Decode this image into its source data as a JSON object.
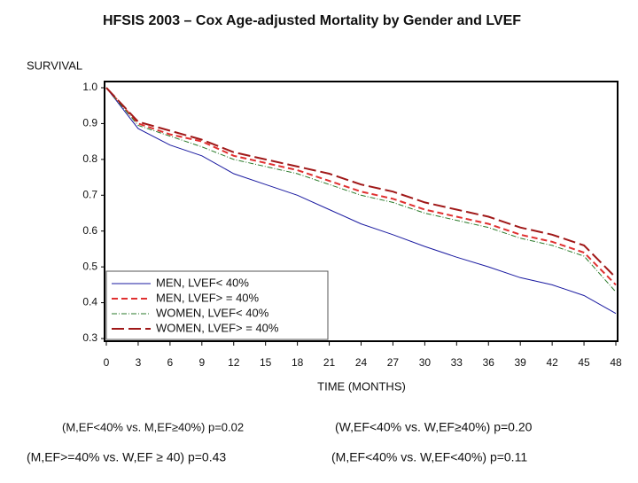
{
  "chart_data": {
    "type": "line",
    "title": "HFSIS 2003 – Cox Age-adjusted Mortality by Gender and LVEF",
    "y_label": "SURVIVAL",
    "x_label": "TIME (MONTHS)",
    "x": [
      0,
      3,
      6,
      9,
      12,
      15,
      18,
      21,
      24,
      27,
      30,
      33,
      36,
      39,
      42,
      45,
      48
    ],
    "series": [
      {
        "name": "MEN, LVEF< 40%",
        "color": "#1a1aa0",
        "values": [
          1.0,
          0.886,
          0.84,
          0.81,
          0.76,
          0.73,
          0.7,
          0.66,
          0.62,
          0.59,
          0.557,
          0.527,
          0.5,
          0.47,
          0.45,
          0.42,
          0.37
        ]
      },
      {
        "name": "MEN, LVEF> = 40%",
        "color": "#e03030",
        "values": [
          1.0,
          0.9,
          0.87,
          0.85,
          0.81,
          0.79,
          0.77,
          0.74,
          0.71,
          0.69,
          0.66,
          0.64,
          0.62,
          0.59,
          0.57,
          0.54,
          0.45
        ]
      },
      {
        "name": "WOMEN, LVEF< 40%",
        "color": "#2a7a2a",
        "values": [
          1.0,
          0.895,
          0.865,
          0.835,
          0.8,
          0.78,
          0.76,
          0.73,
          0.7,
          0.68,
          0.65,
          0.63,
          0.61,
          0.58,
          0.56,
          0.53,
          0.43
        ]
      },
      {
        "name": "WOMEN, LVEF> = 40%",
        "color": "#a01818",
        "values": [
          1.0,
          0.905,
          0.88,
          0.855,
          0.82,
          0.8,
          0.78,
          0.76,
          0.73,
          0.71,
          0.68,
          0.66,
          0.64,
          0.61,
          0.59,
          0.56,
          0.47
        ]
      }
    ],
    "xlim": [
      0,
      48
    ],
    "xticks": [
      0,
      3,
      6,
      9,
      12,
      15,
      18,
      21,
      24,
      27,
      30,
      33,
      36,
      39,
      42,
      45,
      48
    ],
    "ylim": [
      0.3,
      1.0
    ],
    "yticks": [
      {
        "value": 1,
        "label": "1.0"
      },
      0.9,
      0.8,
      0.7,
      0.6,
      0.5,
      0.4,
      0.3
    ],
    "legend": "lower left",
    "notes": [
      "(M,EF<40% vs. M,EF≥40%) p=0.02",
      "(W,EF<40% vs. W,EF≥40%) p=0.20",
      "(M,EF>=40% vs. W,EF ≥ 40) p=0.43",
      "(M,EF<40% vs. W,EF<40%) p=0.11"
    ]
  }
}
